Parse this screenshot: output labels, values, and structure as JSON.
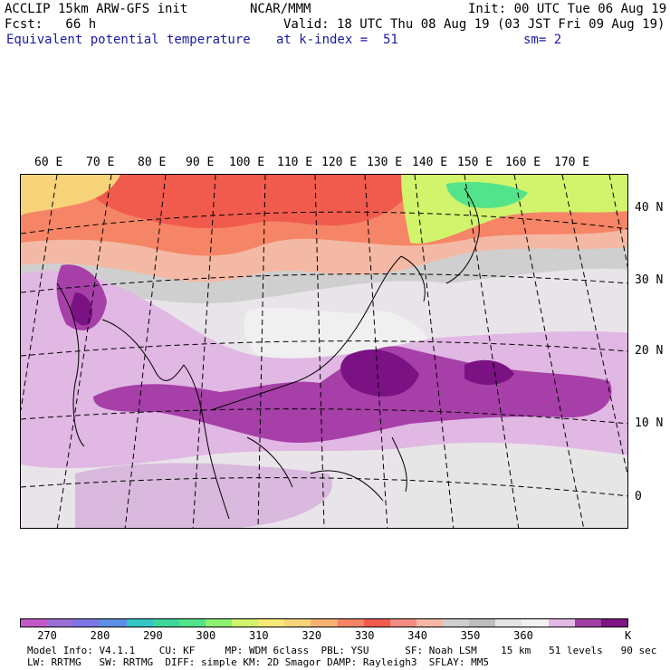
{
  "header": {
    "line1_left": "ACCLIP 15km ARW-GFS init",
    "line1_center": "NCAR/MMM",
    "line1_right": "Init: 00 UTC Tue 06 Aug 19",
    "line2_left": "Fcst:   66 h",
    "line2_right": "Valid: 18 UTC Thu 08 Aug 19 (03 JST Fri 09 Aug 19)",
    "line3_left": "Equivalent potential temperature",
    "line3_center": "at k-index =  51",
    "line3_right": "sm= 2"
  },
  "map": {
    "lon_labels": [
      "60 E",
      "70 E",
      "80 E",
      "90 E",
      "100 E",
      "110 E",
      "120 E",
      "130 E",
      "140 E",
      "150 E",
      "160 E",
      "170 E"
    ],
    "lat_labels": [
      "40 N",
      "30 N",
      "20 N",
      "10 N",
      "0"
    ]
  },
  "colorbar": {
    "colors": [
      "#c359c9",
      "#9a6fd6",
      "#7b78e6",
      "#5c8fe5",
      "#33c6c6",
      "#3fd69c",
      "#53e38a",
      "#8df272",
      "#d2f36c",
      "#f5eb74",
      "#f7d37a",
      "#f7b173",
      "#f58566",
      "#f05b4d",
      "#f48c84",
      "#f4b9a4",
      "#cfcfcf",
      "#bdbdbd",
      "#e5e5e5",
      "#f2f2f2",
      "#e3b8e4",
      "#a23fa4",
      "#7f1483"
    ],
    "tick_labels": [
      "270",
      "280",
      "290",
      "300",
      "310",
      "320",
      "330",
      "340",
      "350",
      "360"
    ],
    "unit": "K"
  },
  "footer": {
    "line1": "Model Info: V4.1.1    CU: KF     MP: WDM 6class  PBL: YSU      SF: Noah LSM    15 km   51 levels   90 sec",
    "line2": "LW: RRTMG   SW: RRTMG  DIFF: simple KM: 2D Smagor DAMP: Rayleigh3  SFLAY: MM5"
  }
}
